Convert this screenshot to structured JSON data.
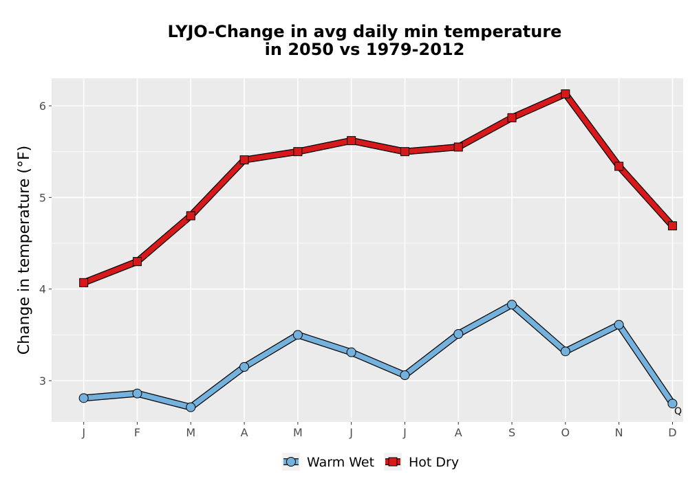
{
  "chart_data": {
    "type": "line",
    "title_line1": "LYJO-Change in avg daily min temperature",
    "title_line2": "in 2050 vs 1979-2012",
    "xlabel": "",
    "ylabel": "Change in temperature (°F)",
    "categories": [
      "J",
      "F",
      "M",
      "A",
      "M",
      "J",
      "J",
      "A",
      "S",
      "O",
      "N",
      "D"
    ],
    "yticks": [
      3,
      4,
      5,
      6
    ],
    "ylim": [
      2.55,
      6.3
    ],
    "grid": true,
    "legend_position": "bottom",
    "corner_text": "Q",
    "series": [
      {
        "name": "Warm Wet",
        "marker": "circle",
        "color": "#74b2dd",
        "values": [
          2.81,
          2.86,
          2.71,
          3.15,
          3.5,
          3.31,
          3.06,
          3.51,
          3.83,
          3.32,
          3.61,
          2.75
        ]
      },
      {
        "name": "Hot Dry",
        "marker": "square",
        "color": "#d7191c",
        "values": [
          4.07,
          4.3,
          4.8,
          5.41,
          5.5,
          5.62,
          5.5,
          5.55,
          5.87,
          6.13,
          5.34,
          4.69
        ]
      }
    ]
  }
}
